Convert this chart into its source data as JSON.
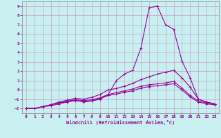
{
  "xlabel": "Windchill (Refroidissement éolien,°C)",
  "background_color": "#c8f0f0",
  "line_color": "#990099",
  "grid_color": "#c8a0c8",
  "ylim": [
    -2.5,
    9.5
  ],
  "xlim": [
    -0.5,
    23.5
  ],
  "yticks": [
    -2,
    -1,
    0,
    1,
    2,
    3,
    4,
    5,
    6,
    7,
    8,
    9
  ],
  "xticks": [
    0,
    1,
    2,
    3,
    4,
    5,
    6,
    7,
    8,
    9,
    10,
    11,
    12,
    13,
    14,
    15,
    16,
    17,
    18,
    19,
    20,
    21,
    22,
    23
  ],
  "lines": [
    {
      "x": [
        0,
        1,
        2,
        3,
        4,
        5,
        6,
        7,
        8,
        9,
        10,
        11,
        12,
        13,
        14,
        15,
        16,
        17,
        18,
        19,
        20,
        21,
        22,
        23
      ],
      "y": [
        -2.0,
        -2.0,
        -1.8,
        -1.6,
        -1.4,
        -1.3,
        -1.1,
        -1.3,
        -1.2,
        -1.0,
        -0.5,
        1.0,
        1.7,
        2.1,
        4.5,
        8.8,
        9.0,
        7.0,
        6.5,
        3.1,
        1.3,
        -1.0,
        -1.3,
        -1.5
      ]
    },
    {
      "x": [
        0,
        1,
        2,
        3,
        4,
        5,
        6,
        7,
        8,
        9,
        10,
        11,
        12,
        13,
        14,
        15,
        16,
        17,
        18,
        19,
        20,
        21,
        22,
        23
      ],
      "y": [
        -2.0,
        -2.0,
        -1.8,
        -1.6,
        -1.3,
        -1.1,
        -0.9,
        -1.0,
        -0.8,
        -0.5,
        0.0,
        0.15,
        0.4,
        0.7,
        1.1,
        1.4,
        1.7,
        1.9,
        2.1,
        1.3,
        0.3,
        -1.0,
        -1.3,
        -1.5
      ]
    },
    {
      "x": [
        0,
        1,
        2,
        3,
        4,
        5,
        6,
        7,
        8,
        9,
        10,
        11,
        12,
        13,
        14,
        15,
        16,
        17,
        18,
        19,
        20,
        21,
        22,
        23
      ],
      "y": [
        -2.0,
        -2.0,
        -1.8,
        -1.6,
        -1.4,
        -1.2,
        -1.05,
        -1.15,
        -1.05,
        -0.85,
        -0.5,
        -0.3,
        -0.1,
        0.1,
        0.4,
        0.55,
        0.65,
        0.75,
        0.9,
        0.2,
        -0.6,
        -1.2,
        -1.4,
        -1.5
      ]
    },
    {
      "x": [
        0,
        1,
        2,
        3,
        4,
        5,
        6,
        7,
        8,
        9,
        10,
        11,
        12,
        13,
        14,
        15,
        16,
        17,
        18,
        19,
        20,
        21,
        22,
        23
      ],
      "y": [
        -2.0,
        -2.0,
        -1.8,
        -1.7,
        -1.5,
        -1.3,
        -1.15,
        -1.25,
        -1.15,
        -0.95,
        -0.6,
        -0.45,
        -0.25,
        -0.1,
        0.2,
        0.35,
        0.45,
        0.55,
        0.65,
        0.0,
        -0.75,
        -1.3,
        -1.5,
        -1.6
      ]
    }
  ]
}
